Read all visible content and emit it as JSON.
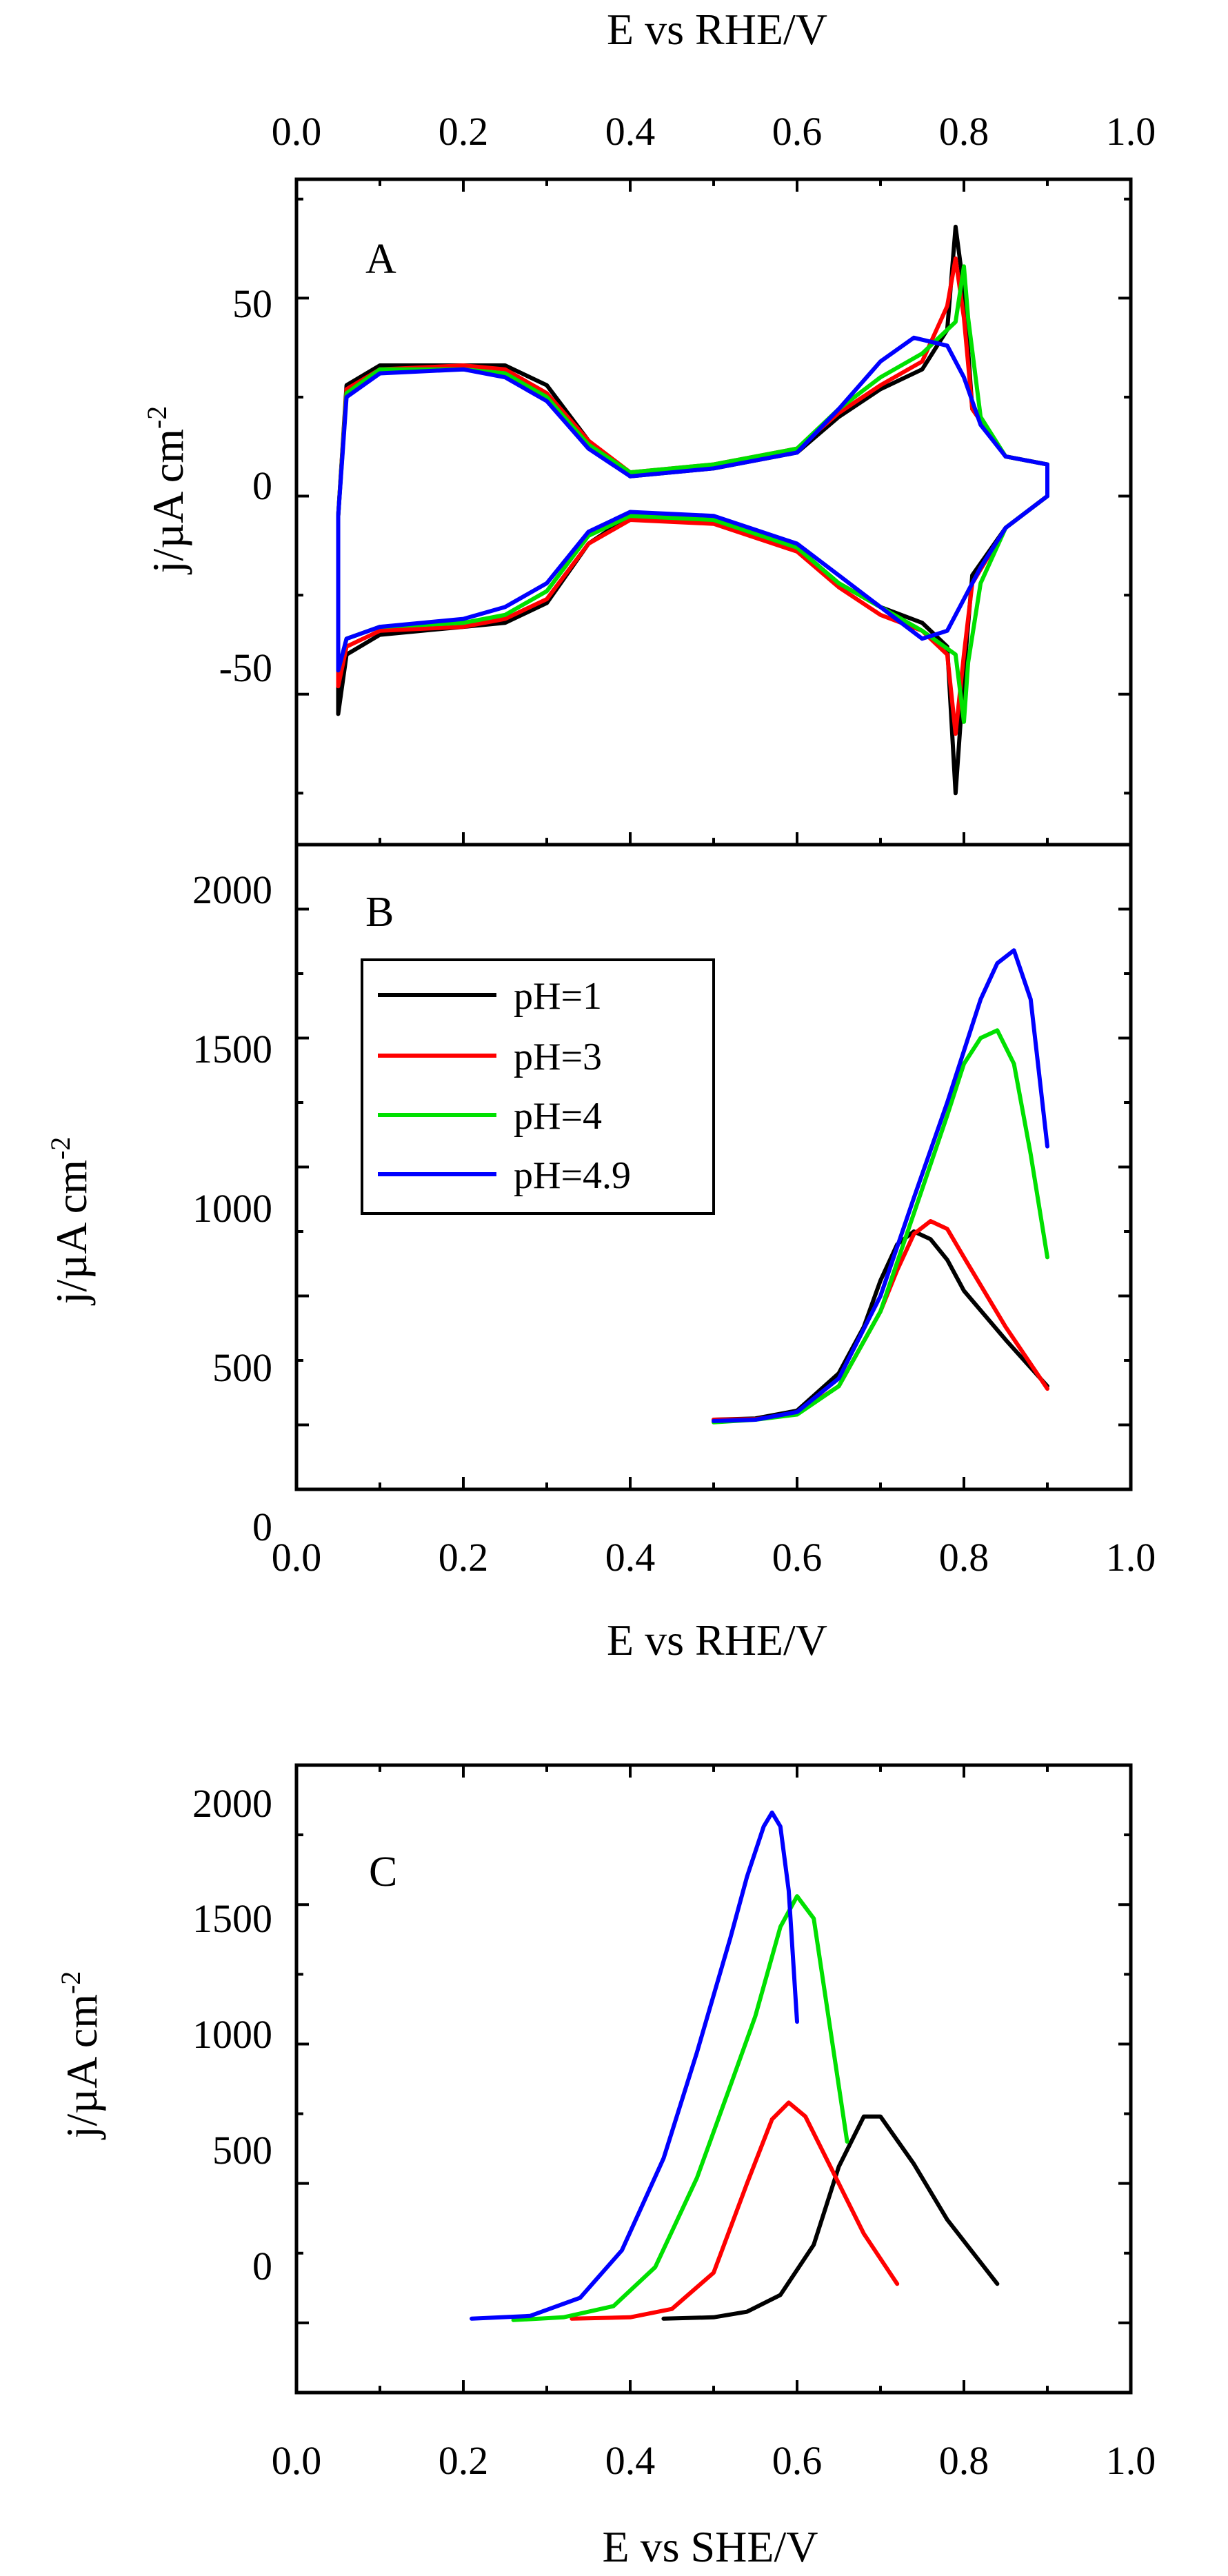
{
  "chart_data": [
    {
      "panel": "A",
      "type": "line",
      "title": "",
      "xlabel": "E vs RHE/V",
      "xlabel_position": "top",
      "ylabel": "j/µA cm",
      "ylabel_superscript": "-2",
      "xlim": [
        0.0,
        1.0
      ],
      "ylim": [
        -88,
        80
      ],
      "xticks": [
        "0.0",
        "0.2",
        "0.4",
        "0.6",
        "0.8",
        "1.0"
      ],
      "yticks": [
        "-50",
        "0",
        "50"
      ],
      "ytick_values": [
        -50,
        0,
        50
      ],
      "series": [
        {
          "name": "pH=1",
          "color": "#000000",
          "x": [
            0.05,
            0.06,
            0.1,
            0.2,
            0.25,
            0.3,
            0.35,
            0.4,
            0.5,
            0.6,
            0.65,
            0.7,
            0.75,
            0.78,
            0.79,
            0.8,
            0.81,
            0.85,
            0.9,
            0.9,
            0.85,
            0.81,
            0.8,
            0.79,
            0.78,
            0.75,
            0.7,
            0.65,
            0.6,
            0.5,
            0.4,
            0.35,
            0.3,
            0.25,
            0.2,
            0.1,
            0.06,
            0.05,
            0.05
          ],
          "y": [
            -5,
            28,
            33,
            33,
            33,
            28,
            14,
            5,
            7,
            11,
            20,
            27,
            32,
            42,
            68,
            52,
            22,
            10,
            8,
            0,
            -8,
            -20,
            -45,
            -75,
            -38,
            -32,
            -28,
            -22,
            -13,
            -6,
            -5,
            -12,
            -27,
            -32,
            -33,
            -35,
            -40,
            -55,
            -5
          ]
        },
        {
          "name": "pH=3",
          "color": "#ff0000",
          "x": [
            0.05,
            0.06,
            0.1,
            0.2,
            0.25,
            0.3,
            0.35,
            0.4,
            0.5,
            0.6,
            0.65,
            0.7,
            0.75,
            0.78,
            0.79,
            0.8,
            0.81,
            0.85,
            0.9,
            0.9,
            0.85,
            0.81,
            0.8,
            0.79,
            0.78,
            0.75,
            0.7,
            0.65,
            0.6,
            0.5,
            0.4,
            0.35,
            0.3,
            0.25,
            0.2,
            0.1,
            0.06,
            0.05,
            0.05
          ],
          "y": [
            -5,
            27,
            32,
            33,
            32,
            26,
            14,
            6,
            8,
            12,
            21,
            28,
            34,
            48,
            60,
            45,
            22,
            10,
            8,
            0,
            -8,
            -22,
            -40,
            -60,
            -40,
            -34,
            -30,
            -23,
            -14,
            -7,
            -6,
            -12,
            -26,
            -31,
            -33,
            -34,
            -38,
            -48,
            -5
          ]
        },
        {
          "name": "pH=4",
          "color": "#00e000",
          "x": [
            0.05,
            0.06,
            0.1,
            0.2,
            0.25,
            0.3,
            0.35,
            0.4,
            0.5,
            0.6,
            0.65,
            0.7,
            0.75,
            0.79,
            0.8,
            0.805,
            0.82,
            0.85,
            0.9,
            0.9,
            0.85,
            0.82,
            0.805,
            0.8,
            0.79,
            0.75,
            0.7,
            0.65,
            0.6,
            0.5,
            0.4,
            0.35,
            0.3,
            0.25,
            0.2,
            0.1,
            0.06,
            0.05,
            0.05
          ],
          "y": [
            -5,
            26,
            32,
            32,
            31,
            25,
            13,
            6,
            8,
            12,
            22,
            30,
            36,
            44,
            58,
            45,
            20,
            10,
            8,
            0,
            -8,
            -22,
            -42,
            -57,
            -40,
            -34,
            -28,
            -22,
            -13,
            -6,
            -5,
            -10,
            -24,
            -30,
            -32,
            -33,
            -36,
            -44,
            -5
          ]
        },
        {
          "name": "pH=4.9",
          "color": "#0000ff",
          "x": [
            0.05,
            0.06,
            0.1,
            0.2,
            0.25,
            0.3,
            0.35,
            0.4,
            0.5,
            0.6,
            0.65,
            0.7,
            0.74,
            0.78,
            0.8,
            0.82,
            0.85,
            0.9,
            0.9,
            0.85,
            0.82,
            0.8,
            0.78,
            0.75,
            0.7,
            0.65,
            0.6,
            0.5,
            0.4,
            0.35,
            0.3,
            0.25,
            0.2,
            0.1,
            0.06,
            0.05,
            0.05
          ],
          "y": [
            -5,
            25,
            31,
            32,
            30,
            24,
            12,
            5,
            7,
            11,
            22,
            34,
            40,
            38,
            30,
            18,
            10,
            8,
            0,
            -8,
            -18,
            -26,
            -34,
            -36,
            -28,
            -20,
            -12,
            -5,
            -4,
            -9,
            -22,
            -28,
            -31,
            -33,
            -36,
            -44,
            -5
          ]
        }
      ],
      "annotations": [
        "A"
      ]
    },
    {
      "panel": "B",
      "type": "line",
      "xlabel": "E vs RHE/V",
      "ylabel": "j/µA cm",
      "ylabel_superscript": "-2",
      "xlim": [
        0.0,
        1.0
      ],
      "ylim": [
        -250,
        2250
      ],
      "xticks": [
        "0.0",
        "0.2",
        "0.4",
        "0.6",
        "0.8",
        "1.0"
      ],
      "yticks": [
        "0",
        "500",
        "1000",
        "1500",
        "2000"
      ],
      "ytick_values": [
        0,
        500,
        1000,
        1500,
        2000
      ],
      "legend": {
        "placement": "upper-left",
        "entries": [
          "pH=1",
          "pH=3",
          "pH=4",
          "pH=4.9"
        ]
      },
      "series": [
        {
          "name": "pH=1",
          "color": "#000000",
          "x": [
            0.5,
            0.55,
            0.6,
            0.65,
            0.68,
            0.7,
            0.72,
            0.74,
            0.76,
            0.78,
            0.8,
            0.85,
            0.9
          ],
          "y": [
            20,
            25,
            55,
            200,
            380,
            560,
            700,
            750,
            720,
            640,
            520,
            330,
            150
          ]
        },
        {
          "name": "pH=3",
          "color": "#ff0000",
          "x": [
            0.5,
            0.55,
            0.6,
            0.65,
            0.7,
            0.72,
            0.74,
            0.76,
            0.78,
            0.8,
            0.85,
            0.9
          ],
          "y": [
            20,
            22,
            45,
            150,
            440,
            600,
            740,
            790,
            760,
            650,
            380,
            140
          ]
        },
        {
          "name": "pH=4",
          "color": "#00e000",
          "x": [
            0.5,
            0.55,
            0.6,
            0.65,
            0.7,
            0.74,
            0.78,
            0.8,
            0.82,
            0.84,
            0.86,
            0.88,
            0.9
          ],
          "y": [
            10,
            20,
            40,
            150,
            440,
            820,
            1200,
            1400,
            1500,
            1530,
            1400,
            1050,
            650
          ]
        },
        {
          "name": "pH=4.9",
          "color": "#0000ff",
          "x": [
            0.5,
            0.55,
            0.6,
            0.65,
            0.7,
            0.74,
            0.78,
            0.8,
            0.82,
            0.84,
            0.86,
            0.88,
            0.9
          ],
          "y": [
            15,
            20,
            50,
            180,
            500,
            880,
            1250,
            1450,
            1650,
            1790,
            1840,
            1650,
            1080
          ]
        }
      ],
      "annotations": [
        "B"
      ]
    },
    {
      "panel": "C",
      "type": "line",
      "xlabel": "E vs SHE/V",
      "ylabel": "j/µA cm",
      "ylabel_superscript": "-2",
      "xlim": [
        0.0,
        1.0
      ],
      "ylim": [
        -250,
        2000
      ],
      "xticks": [
        "0.0",
        "0.2",
        "0.4",
        "0.6",
        "0.8",
        "1.0"
      ],
      "yticks": [
        "0",
        "500",
        "1000",
        "1500",
        "2000"
      ],
      "ytick_values": [
        0,
        500,
        1000,
        1500,
        2000
      ],
      "series": [
        {
          "name": "pH=1",
          "color": "#000000",
          "x": [
            0.44,
            0.5,
            0.54,
            0.58,
            0.62,
            0.65,
            0.68,
            0.7,
            0.74,
            0.78,
            0.84
          ],
          "y": [
            15,
            20,
            40,
            100,
            280,
            560,
            740,
            740,
            570,
            370,
            140
          ]
        },
        {
          "name": "pH=3",
          "color": "#ff0000",
          "x": [
            0.33,
            0.4,
            0.45,
            0.5,
            0.54,
            0.57,
            0.59,
            0.61,
            0.64,
            0.68,
            0.72
          ],
          "y": [
            15,
            20,
            50,
            180,
            500,
            730,
            790,
            740,
            560,
            320,
            140
          ]
        },
        {
          "name": "pH=4",
          "color": "#00e000",
          "x": [
            0.26,
            0.32,
            0.38,
            0.43,
            0.48,
            0.52,
            0.55,
            0.58,
            0.6,
            0.62,
            0.64,
            0.66
          ],
          "y": [
            10,
            20,
            60,
            200,
            520,
            850,
            1100,
            1420,
            1530,
            1450,
            1050,
            650
          ]
        },
        {
          "name": "pH=4.9",
          "color": "#0000ff",
          "x": [
            0.21,
            0.28,
            0.34,
            0.39,
            0.44,
            0.48,
            0.52,
            0.54,
            0.56,
            0.57,
            0.58,
            0.59,
            0.6
          ],
          "y": [
            15,
            25,
            90,
            260,
            590,
            970,
            1380,
            1600,
            1780,
            1830,
            1780,
            1550,
            1080
          ]
        }
      ],
      "annotations": [
        "C"
      ]
    }
  ]
}
